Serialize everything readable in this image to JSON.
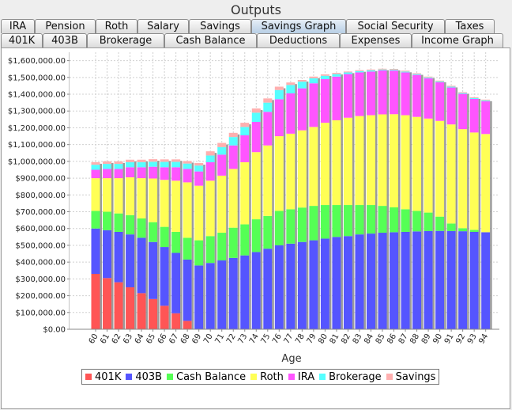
{
  "window": {
    "title": "Outputs"
  },
  "tabs_top": [
    {
      "label": "IRA",
      "selected": false
    },
    {
      "label": "Pension",
      "selected": false
    },
    {
      "label": "Roth",
      "selected": false
    },
    {
      "label": "Salary",
      "selected": false
    },
    {
      "label": "Savings",
      "selected": false
    },
    {
      "label": "Savings Graph",
      "selected": true
    },
    {
      "label": "Social Security",
      "selected": false
    },
    {
      "label": "Taxes",
      "selected": false
    }
  ],
  "tabs_bottom": [
    {
      "label": "401K"
    },
    {
      "label": "403B"
    },
    {
      "label": "Brokerage"
    },
    {
      "label": "Cash Balance"
    },
    {
      "label": "Deductions"
    },
    {
      "label": "Expenses"
    },
    {
      "label": "Income Graph"
    }
  ],
  "chart_data": {
    "type": "bar",
    "stacked": true,
    "xlabel": "Age",
    "ylabel": "",
    "ylim": [
      0,
      1650000
    ],
    "yticks": [
      0,
      100000,
      200000,
      300000,
      400000,
      500000,
      600000,
      700000,
      800000,
      900000,
      1000000,
      1100000,
      1200000,
      1300000,
      1400000,
      1500000,
      1600000
    ],
    "ytick_labels": [
      "$0.00",
      "$100,000.00",
      "$200,000.00",
      "$300,000.00",
      "$400,000.00",
      "$500,000.00",
      "$600,000.00",
      "$700,000.00",
      "$800,000.00",
      "$900,000.00",
      "$1,000,000.00",
      "$1,100,000.00",
      "$1,200,000.00",
      "$1,300,000.00",
      "$1,400,000.00",
      "$1,500,000.00",
      "$1,600,000.00"
    ],
    "grid": true,
    "legend_position": "bottom",
    "categories": [
      "60",
      "61",
      "62",
      "63",
      "64",
      "65",
      "66",
      "67",
      "68",
      "69",
      "70",
      "71",
      "72",
      "73",
      "74",
      "75",
      "76",
      "77",
      "78",
      "79",
      "80",
      "81",
      "82",
      "83",
      "84",
      "85",
      "86",
      "87",
      "88",
      "89",
      "90",
      "91",
      "92",
      "93",
      "94"
    ],
    "series": [
      {
        "name": "401K",
        "color": "#ff5555",
        "values": [
          330000,
          305000,
          280000,
          250000,
          215000,
          180000,
          140000,
          95000,
          50000,
          0,
          0,
          0,
          0,
          0,
          0,
          0,
          0,
          0,
          0,
          0,
          0,
          0,
          0,
          0,
          0,
          0,
          0,
          0,
          0,
          0,
          0,
          0,
          0,
          0,
          0
        ]
      },
      {
        "name": "403B",
        "color": "#5555ff",
        "values": [
          270000,
          285000,
          300000,
          315000,
          330000,
          340000,
          350000,
          360000,
          365000,
          380000,
          395000,
          410000,
          425000,
          440000,
          460000,
          480000,
          500000,
          510000,
          520000,
          530000,
          540000,
          550000,
          555000,
          565000,
          570000,
          575000,
          578000,
          580000,
          583000,
          585000,
          586000,
          585000,
          584000,
          580000,
          578000
        ]
      },
      {
        "name": "Cash Balance",
        "color": "#55ff55",
        "values": [
          105000,
          110000,
          110000,
          115000,
          115000,
          118000,
          120000,
          125000,
          130000,
          150000,
          160000,
          165000,
          180000,
          185000,
          195000,
          195000,
          205000,
          205000,
          205000,
          205000,
          200000,
          190000,
          185000,
          175000,
          170000,
          160000,
          148000,
          135000,
          122000,
          110000,
          85000,
          45000,
          18000,
          12000,
          0
        ]
      },
      {
        "name": "Roth",
        "color": "#ffff55",
        "values": [
          195000,
          200000,
          210000,
          225000,
          240000,
          260000,
          280000,
          305000,
          330000,
          325000,
          330000,
          340000,
          350000,
          370000,
          400000,
          420000,
          445000,
          450000,
          460000,
          470000,
          490000,
          505000,
          520000,
          530000,
          535000,
          545000,
          555000,
          560000,
          560000,
          560000,
          570000,
          590000,
          590000,
          580000,
          585000
        ]
      },
      {
        "name": "IRA",
        "color": "#ff55ff",
        "values": [
          50000,
          55000,
          55000,
          60000,
          65000,
          70000,
          75000,
          80000,
          80000,
          85000,
          110000,
          125000,
          140000,
          160000,
          180000,
          200000,
          220000,
          240000,
          250000,
          260000,
          260000,
          260000,
          260000,
          260000,
          260000,
          262000,
          260000,
          255000,
          250000,
          240000,
          230000,
          220000,
          210000,
          200000,
          195000
        ]
      },
      {
        "name": "Brokerage",
        "color": "#55ffff",
        "values": [
          30000,
          30000,
          30000,
          30000,
          30000,
          30000,
          32000,
          32000,
          32000,
          35000,
          40000,
          45000,
          50000,
          50000,
          55000,
          55000,
          55000,
          50000,
          40000,
          30000,
          20000,
          15000,
          10000,
          8000,
          7000,
          5000,
          5000,
          5000,
          5000,
          5000,
          5000,
          5000,
          5000,
          5000,
          5000
        ]
      },
      {
        "name": "Savings",
        "color": "#ffafaf",
        "values": [
          15000,
          15000,
          15000,
          15000,
          15000,
          15000,
          15000,
          15000,
          15000,
          15000,
          25000,
          25000,
          25000,
          25000,
          25000,
          25000,
          20000,
          15000,
          10000,
          10000,
          8000,
          7000,
          5000,
          5000,
          5000,
          5000,
          5000,
          5000,
          5000,
          5000,
          5000,
          5000,
          5000,
          5000,
          5000
        ]
      }
    ]
  }
}
